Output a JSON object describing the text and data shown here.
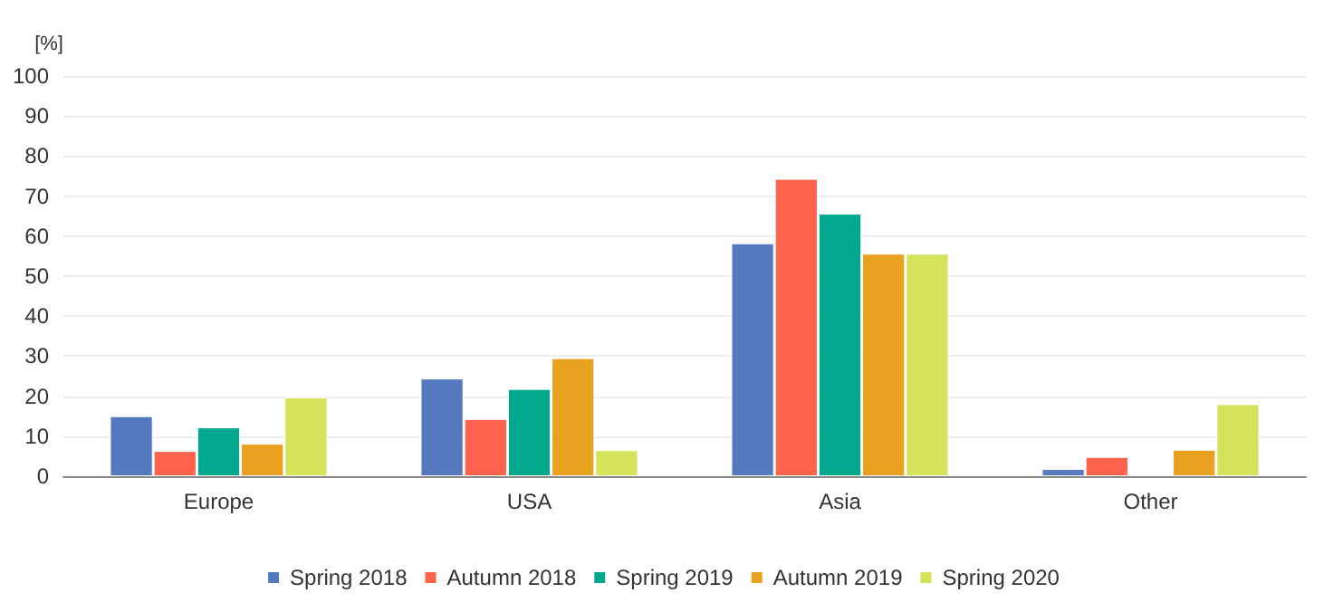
{
  "chart_data": {
    "type": "bar",
    "ylabel": "[%]",
    "categories": [
      "Europe",
      "USA",
      "Asia",
      "Other"
    ],
    "series": [
      {
        "name": "Spring 2018",
        "color": "#5479bf",
        "values": [
          15,
          24.4,
          58.2,
          1.8
        ]
      },
      {
        "name": "Autumn 2018",
        "color": "#ff634d",
        "values": [
          6.3,
          14.3,
          74.3,
          4.8
        ]
      },
      {
        "name": "Spring 2019",
        "color": "#00a88e",
        "values": [
          12.2,
          21.8,
          65.6,
          null
        ]
      },
      {
        "name": "Autumn 2019",
        "color": "#e8a21f",
        "values": [
          8.1,
          29.5,
          55.6,
          6.6
        ]
      },
      {
        "name": "Spring 2020",
        "color": "#d4e35a",
        "values": [
          19.7,
          6.5,
          55.6,
          18
        ]
      }
    ],
    "ylim": [
      0,
      100
    ],
    "yticks": [
      0,
      10,
      20,
      30,
      40,
      50,
      60,
      70,
      80,
      90,
      100
    ],
    "grid": "y",
    "legend": "bottom"
  }
}
